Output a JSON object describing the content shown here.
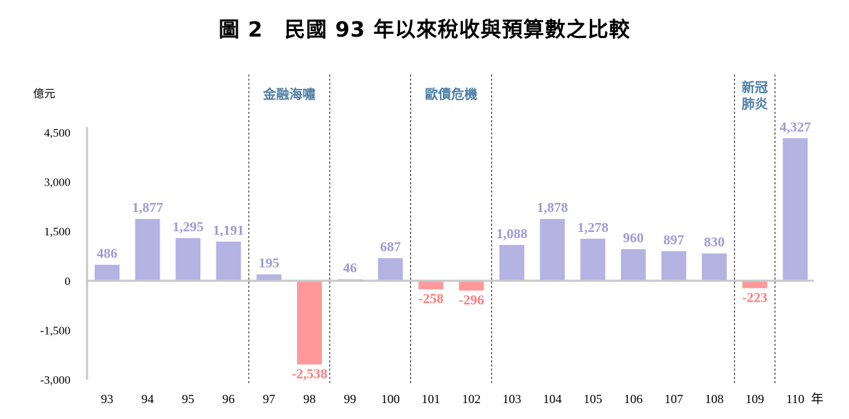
{
  "chart_data": {
    "type": "bar",
    "title": "圖 2　民國 93 年以來稅收與預算數之比較",
    "ylabel": "億元",
    "xunit": "年",
    "ylim": [
      -3000,
      4500
    ],
    "yticks": [
      "4,500",
      "3,000",
      "1,500",
      "0",
      "-1,500",
      "-3,000"
    ],
    "ytick_values": [
      4500,
      3000,
      1500,
      0,
      -1500,
      -3000
    ],
    "categories": [
      "93",
      "94",
      "95",
      "96",
      "97",
      "98",
      "99",
      "100",
      "101",
      "102",
      "103",
      "104",
      "105",
      "106",
      "107",
      "108",
      "109",
      "110"
    ],
    "values": [
      486,
      1877,
      1295,
      1191,
      195,
      -2538,
      46,
      687,
      -258,
      -296,
      1088,
      1878,
      1278,
      960,
      897,
      830,
      -223,
      4327
    ],
    "value_labels": [
      "486",
      "1,877",
      "1,295",
      "1,191",
      "195",
      "-2,538",
      "46",
      "687",
      "-258",
      "-296",
      "1,088",
      "1,878",
      "1,278",
      "960",
      "897",
      "830",
      "-223",
      "4,327"
    ],
    "colors": {
      "positive": "#b5b3e2",
      "negative": "#ff9999",
      "positive_label": "#9d9ad6",
      "negative_label": "#ff7c7c",
      "event_label": "#4f7fa6"
    },
    "grid": false,
    "events": [
      {
        "label": "金融海嘯",
        "start_after": "96",
        "end_after": "98"
      },
      {
        "label": "歐債危機",
        "start_after": "100",
        "end_after": "102"
      },
      {
        "label": "新冠肺炎",
        "start_after": "108",
        "end_after": "109"
      }
    ]
  }
}
